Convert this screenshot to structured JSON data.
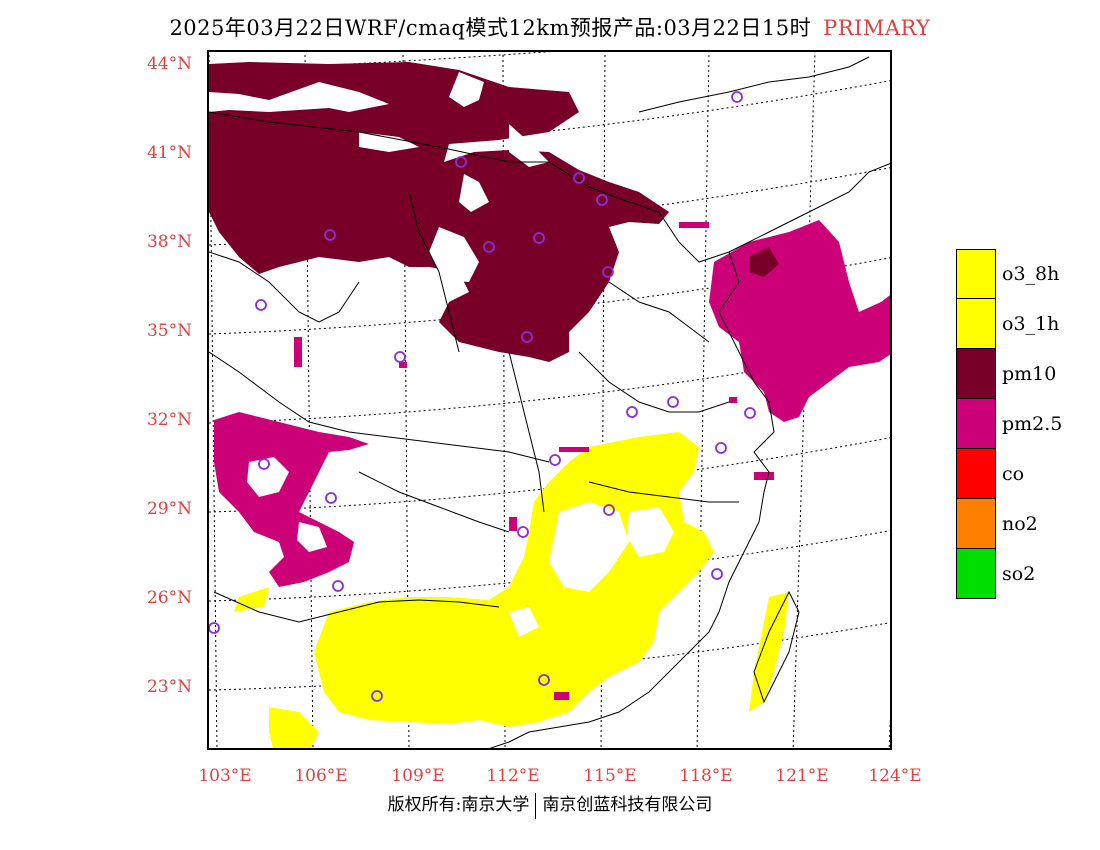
{
  "title": {
    "text": "2025年03月22日WRF/cmaq模式12km预报产品:03月22日15时",
    "tag": "PRIMARY"
  },
  "map": {
    "lat_labels": [
      "44°N",
      "41°N",
      "38°N",
      "35°N",
      "32°N",
      "29°N",
      "26°N",
      "23°N"
    ],
    "lon_labels": [
      "103°E",
      "106°E",
      "109°E",
      "112°E",
      "115°E",
      "118°E",
      "121°E",
      "124°E"
    ],
    "colors": {
      "o3_8h": "#ffff00",
      "o3_1h": "#ffff00",
      "pm10": "#780028",
      "pm2_5": "#cc0077",
      "co": "#ff0000",
      "no2": "#ff7f00",
      "so2": "#00dd00",
      "marker": "#8a2be2",
      "label": "#e04040"
    }
  },
  "legend": [
    {
      "label": "o3_8h",
      "color": "#ffff00"
    },
    {
      "label": "o3_1h",
      "color": "#ffff00"
    },
    {
      "label": "pm10",
      "color": "#780028"
    },
    {
      "label": "pm2.5",
      "color": "#cc0077"
    },
    {
      "label": "co",
      "color": "#ff0000"
    },
    {
      "label": "no2",
      "color": "#ff7f00"
    },
    {
      "label": "so2",
      "color": "#00dd00"
    }
  ],
  "footer": {
    "left": "版权所有:南京大学",
    "right": "南京创蓝科技有限公司"
  }
}
